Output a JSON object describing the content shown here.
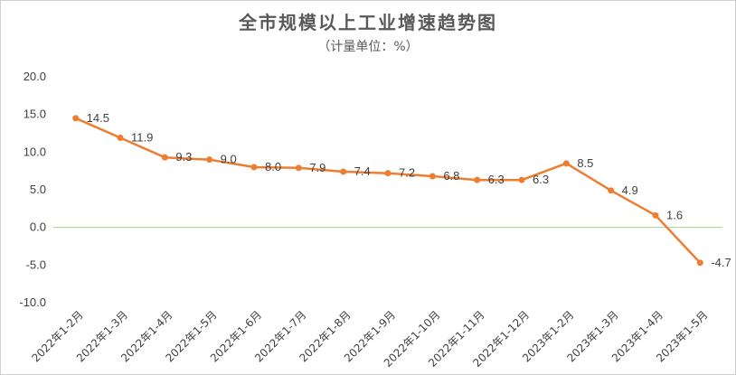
{
  "chart_data": {
    "type": "line",
    "title": "全市规模以上工业增速趋势图",
    "subtitle": "（计量单位：%）",
    "categories": [
      "2022年1-2月",
      "2022年1-3月",
      "2022年1-4月",
      "2022年1-5月",
      "2022年1-6月",
      "2022年1-7月",
      "2022年1-8月",
      "2022年1-9月",
      "2022年1-10月",
      "2022年1-11月",
      "2022年1-12月",
      "2023年1-2月",
      "2023年1-3月",
      "2023年1-4月",
      "2023年1-5月"
    ],
    "series": [
      {
        "values": [
          14.5,
          11.9,
          9.3,
          9.0,
          8.0,
          7.9,
          7.4,
          7.2,
          6.8,
          6.3,
          6.3,
          8.5,
          4.9,
          1.6,
          -4.7
        ]
      }
    ],
    "data_labels": [
      "14.5",
      "11.9",
      "9.3",
      "9.0",
      "8.0",
      "7.9",
      "7.4",
      "7.2",
      "6.8",
      "6.3",
      "6.3",
      "8.5",
      "4.9",
      "1.6",
      "-4.7"
    ],
    "y_tick_labels": [
      "20.0",
      "15.0",
      "10.0",
      "5.0",
      "0.0",
      "-5.0",
      "-10.0"
    ],
    "y_ticks": [
      20,
      15,
      10,
      5,
      0,
      -5,
      -10
    ],
    "ylim": [
      -10,
      20
    ],
    "grid": false,
    "legend": "none",
    "colors": {
      "line": "#ED7D31",
      "zero_line": "#A9D18E",
      "text": "#404040",
      "title": "#595959"
    }
  }
}
